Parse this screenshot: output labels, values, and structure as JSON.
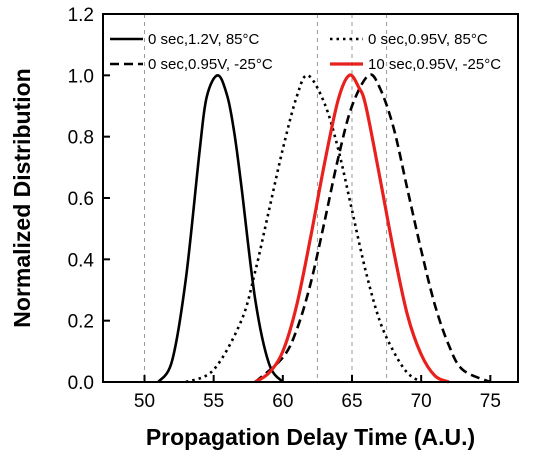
{
  "chart_data": {
    "type": "line",
    "xlabel": "Propagation Delay Time (A.U.)",
    "ylabel": "Normalized Distribution",
    "xlim": [
      47,
      77
    ],
    "ylim": [
      0,
      1.2
    ],
    "xticks": [
      50,
      55,
      60,
      65,
      70,
      75
    ],
    "yticks": [
      0.0,
      0.2,
      0.4,
      0.6,
      0.8,
      1.0,
      1.2
    ],
    "xtick_labels": [
      "50",
      "55",
      "60",
      "65",
      "70",
      "75"
    ],
    "ytick_labels": [
      "0.0",
      "0.2",
      "0.4",
      "0.6",
      "0.8",
      "1.0",
      "1.2"
    ],
    "reference_lines_x": [
      50,
      62.5,
      65,
      67.5
    ],
    "legend": {
      "placement": "top",
      "columns": 2
    },
    "series": [
      {
        "name": "0 sec,1.2V, 85°C",
        "color": "#000000",
        "style": "solid",
        "width": 2.6,
        "x": [
          51.0,
          52.0,
          53.0,
          54.0,
          54.5,
          55.3,
          56.0,
          56.5,
          57.0,
          58.0,
          59.0,
          60.0
        ],
        "y": [
          0.0,
          0.07,
          0.34,
          0.76,
          0.93,
          1.0,
          0.93,
          0.81,
          0.64,
          0.27,
          0.06,
          0.0
        ]
      },
      {
        "name": "0 sec,0.95V, 85°C",
        "color": "#000000",
        "style": "dotted",
        "width": 2.6,
        "x": [
          53.0,
          55.0,
          57.0,
          58.0,
          59.0,
          60.0,
          61.0,
          61.8,
          63.0,
          64.0,
          65.0,
          66.0,
          67.0,
          68.0,
          69.0,
          70.0
        ],
        "y": [
          0.0,
          0.04,
          0.2,
          0.36,
          0.56,
          0.76,
          0.93,
          1.0,
          0.91,
          0.76,
          0.56,
          0.36,
          0.2,
          0.1,
          0.03,
          0.0
        ]
      },
      {
        "name": "0 sec,0.95V, -25°C",
        "color": "#000000",
        "style": "dashed",
        "width": 2.6,
        "x": [
          58.0,
          60.0,
          61.0,
          62.0,
          63.0,
          64.0,
          65.0,
          66.2,
          67.0,
          68.0,
          69.0,
          70.0,
          71.0,
          72.0,
          73.0,
          75.0
        ],
        "y": [
          0.0,
          0.08,
          0.17,
          0.32,
          0.52,
          0.73,
          0.9,
          1.0,
          0.96,
          0.83,
          0.63,
          0.43,
          0.25,
          0.12,
          0.04,
          0.0
        ]
      },
      {
        "name": "10 sec,0.95V, -25°C",
        "color": "#e8211d",
        "style": "solid",
        "width": 3.2,
        "x": [
          58.0,
          59.0,
          60.0,
          61.0,
          62.0,
          63.0,
          64.0,
          64.8,
          65.5,
          66.0,
          67.0,
          68.0,
          69.0,
          70.0,
          71.0,
          72.0
        ],
        "y": [
          0.0,
          0.03,
          0.1,
          0.25,
          0.47,
          0.71,
          0.92,
          1.0,
          0.96,
          0.9,
          0.67,
          0.43,
          0.22,
          0.09,
          0.02,
          0.0
        ]
      }
    ]
  }
}
